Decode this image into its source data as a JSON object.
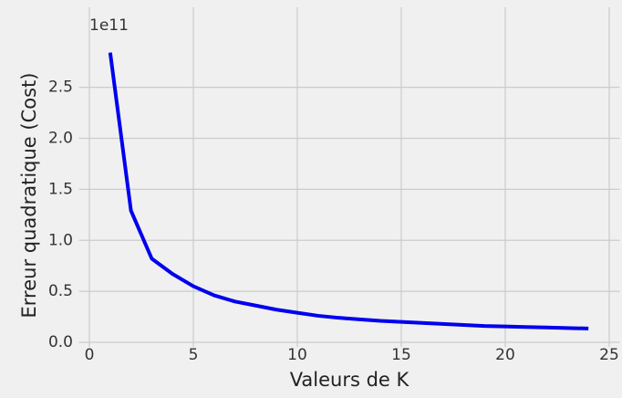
{
  "chart_data": {
    "type": "line",
    "x_label": "Valeurs de K",
    "y_label": "Erreur quadratique (Cost)",
    "y_offset_label": "1e11",
    "x": [
      1,
      2,
      3,
      4,
      5,
      6,
      7,
      8,
      9,
      10,
      11,
      12,
      13,
      14,
      15,
      16,
      17,
      18,
      19,
      20,
      21,
      22,
      23,
      24
    ],
    "series": [
      {
        "name": "Cost",
        "color": "#0000ee",
        "values": [
          2.84,
          1.29,
          0.82,
          0.67,
          0.55,
          0.46,
          0.4,
          0.36,
          0.32,
          0.29,
          0.26,
          0.24,
          0.225,
          0.21,
          0.2,
          0.19,
          0.18,
          0.17,
          0.16,
          0.155,
          0.15,
          0.145,
          0.14,
          0.135
        ]
      }
    ],
    "xlim": [
      -0.15,
      25.15
    ],
    "ylim": [
      0,
      2.98
    ],
    "xticks": [
      0,
      5,
      10,
      15,
      20,
      25
    ],
    "yticks": [
      {
        "value": 0,
        "label": "0.0"
      },
      0.5,
      {
        "value": 1,
        "label": "1.0"
      },
      1.5,
      {
        "value": 2,
        "label": "2.0"
      },
      2.5
    ],
    "grid": true
  }
}
